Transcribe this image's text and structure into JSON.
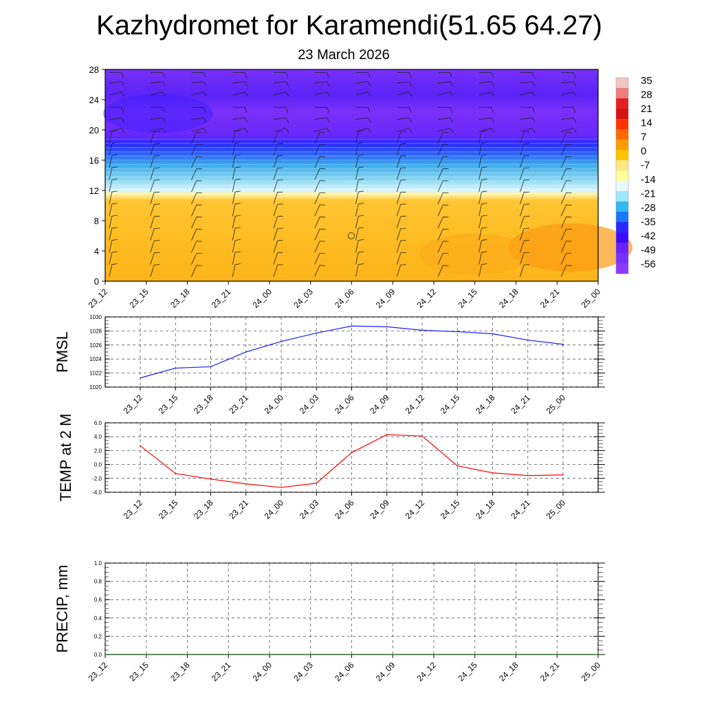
{
  "title": "Kazhydromet for Karamendi(51.65 64.27)",
  "subtitle": "23 March 2026",
  "colors": {
    "pmsl_line": "#1a1aff",
    "temp_line": "#ff0000",
    "precip_line": "#1d6a1d",
    "grid": "#555555"
  },
  "chart_data": [
    {
      "name": "cross_section",
      "type": "heatmap",
      "x_categories": [
        "23_12",
        "23_15",
        "23_18",
        "23_21",
        "24_00",
        "24_03",
        "24_06",
        "24_09",
        "24_12",
        "24_15",
        "24_18",
        "24_21",
        "25_00"
      ],
      "yticks": [
        "0",
        "4",
        "8",
        "12",
        "16",
        "20",
        "24",
        "28"
      ],
      "ylim": [
        0,
        28
      ],
      "colorbar_labels": [
        "35",
        "28",
        "21",
        "14",
        "7",
        "0",
        "-7",
        "-14",
        "-21",
        "-28",
        "-35",
        "-42",
        "-49",
        "-56"
      ],
      "colorbar_colors": [
        "#f3c4c4",
        "#ee7d7d",
        "#e42020",
        "#d51313",
        "#ff3300",
        "#ff6a00",
        "#ff9a00",
        "#ffc400",
        "#ffe680",
        "#ffff99",
        "#e8f8ff",
        "#9fe6ff",
        "#32b7f0",
        "#1a78ff",
        "#2a2aff",
        "#3d0aff",
        "#6a22ff",
        "#7a30ff",
        "#8a3aff"
      ],
      "bands": [
        {
          "from": 0,
          "to": 11.5,
          "value": "warm",
          "color": "#fdbb1c"
        },
        {
          "from": 11.5,
          "to": 13,
          "value": "-12",
          "color": "#fff6a0"
        },
        {
          "from": 13,
          "to": 15,
          "value": "-21",
          "color": "#8fdcf5"
        },
        {
          "from": 15,
          "to": 17.5,
          "value": "-35",
          "color": "#2f9bea"
        },
        {
          "from": 17.5,
          "to": 19,
          "value": "-56",
          "color": "#2a2aff"
        },
        {
          "from": 19,
          "to": 28,
          "value": "-56",
          "color": "#7a2ef8"
        }
      ]
    },
    {
      "name": "pmsl",
      "type": "line",
      "ylabel": "PMSL",
      "x": [
        "23_12",
        "23_15",
        "23_18",
        "23_21",
        "24_00",
        "24_03",
        "24_06",
        "24_09",
        "24_12",
        "24_15",
        "24_18",
        "24_21",
        "25_00"
      ],
      "values": [
        1021.3,
        1022.7,
        1022.9,
        1025.0,
        1026.5,
        1027.7,
        1028.7,
        1028.6,
        1028.1,
        1027.9,
        1027.6,
        1026.7,
        1026.1
      ],
      "ylim": [
        1020,
        1030
      ],
      "yticks": [
        "1020",
        "1022",
        "1024",
        "1026",
        "1028",
        "1030"
      ]
    },
    {
      "name": "temp",
      "type": "line",
      "ylabel": "TEMP at 2 M",
      "x": [
        "23_12",
        "23_15",
        "23_18",
        "23_21",
        "24_00",
        "24_03",
        "24_06",
        "24_09",
        "24_12",
        "24_15",
        "24_18",
        "24_21",
        "25_00"
      ],
      "values": [
        2.7,
        -1.3,
        -2.1,
        -2.8,
        -3.3,
        -2.7,
        1.7,
        4.3,
        4.1,
        -0.2,
        -1.2,
        -1.6,
        -1.5
      ],
      "ylim": [
        -4,
        6
      ],
      "yticks": [
        "-4.0",
        "-2.0",
        "0.0",
        "2.0",
        "4.0",
        "6.0"
      ]
    },
    {
      "name": "precip",
      "type": "line",
      "ylabel": "PRECIP, mm",
      "x": [
        "23_12",
        "23_15",
        "23_18",
        "23_21",
        "24_00",
        "24_03",
        "24_06",
        "24_09",
        "24_12",
        "24_15",
        "24_18",
        "24_21",
        "25_00"
      ],
      "values": [
        0,
        0,
        0,
        0,
        0,
        0,
        0,
        0,
        0,
        0,
        0,
        0,
        0
      ],
      "ylim": [
        0,
        1
      ],
      "yticks": [
        "0.0",
        "0.2",
        "0.4",
        "0.6",
        "0.8",
        "1.0"
      ]
    }
  ]
}
